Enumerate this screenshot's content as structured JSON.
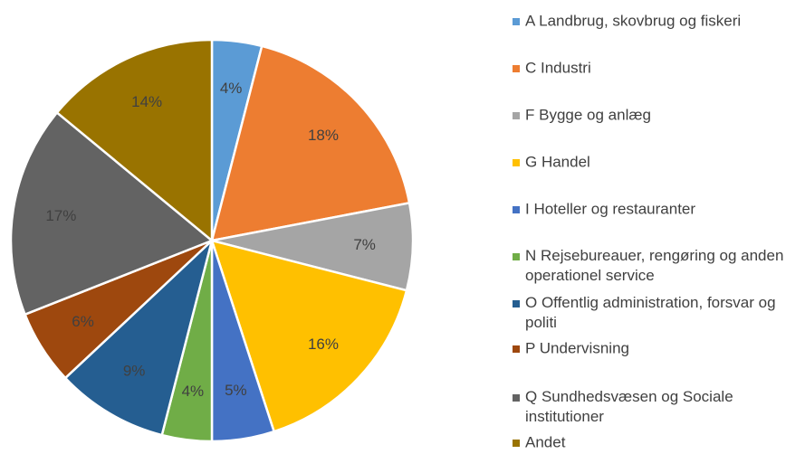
{
  "chart_data": {
    "type": "pie",
    "categories": [
      "A Landbrug, skovbrug og fiskeri",
      "C Industri",
      "F Bygge og anlæg",
      "G Handel",
      "I Hoteller og restauranter",
      "N Rejsebureauer, rengøring og anden operationel service",
      "O Offentlig administration, forsvar og politi",
      "P Undervisning",
      "Q Sundhedsvæsen og Sociale institutioner",
      "Andet"
    ],
    "values": [
      4,
      18,
      7,
      16,
      5,
      4,
      9,
      6,
      17,
      14
    ],
    "value_labels": [
      "4%",
      "18%",
      "7%",
      "16%",
      "5%",
      "4%",
      "9%",
      "6%",
      "17%",
      "14%"
    ],
    "colors": [
      "#5b9bd5",
      "#ed7d31",
      "#a5a5a5",
      "#ffc000",
      "#4472c4",
      "#70ad47",
      "#255e91",
      "#9e480e",
      "#636363",
      "#997300"
    ],
    "legend": "right"
  }
}
